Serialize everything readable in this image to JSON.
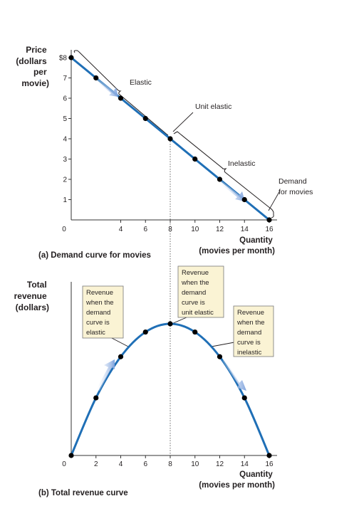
{
  "panel_a": {
    "y_label_lines": [
      "Price",
      "(dollars",
      "per",
      "movie)"
    ],
    "x_label_lines": [
      "Quantity",
      "(movies per month)"
    ],
    "caption": "(a) Demand curve for movies",
    "y_ticks": [
      "$8",
      "7",
      "6",
      "5",
      "4",
      "3",
      "2",
      "1"
    ],
    "x_ticks": [
      "0",
      "4",
      "6",
      "8",
      "10",
      "12",
      "14",
      "16"
    ],
    "annotations": {
      "elastic": "Elastic",
      "unit_elastic": "Unit elastic",
      "inelastic": "Inelastic",
      "demand_lines": [
        "Demand",
        "for movies"
      ]
    }
  },
  "panel_b": {
    "y_label_lines": [
      "Total",
      "revenue",
      "(dollars)"
    ],
    "x_label_lines": [
      "Quantity",
      "(movies per month)"
    ],
    "caption": "(b) Total revenue curve",
    "x_ticks": [
      "0",
      "2",
      "4",
      "6",
      "8",
      "10",
      "12",
      "14",
      "16"
    ],
    "boxes": {
      "elastic": [
        "Revenue",
        "when the",
        "demand",
        "curve is",
        "elastic"
      ],
      "unit": [
        "Revenue",
        "when the",
        "demand",
        "curve is",
        "unit elastic"
      ],
      "inelastic": [
        "Revenue",
        "when the",
        "demand",
        "curve is",
        "inelastic"
      ]
    }
  },
  "colors": {
    "curve": "#1f6fb6",
    "arrow": "#9fb8e3",
    "box_fill": "#faf3d4",
    "guide": "#444444"
  },
  "chart_data": [
    {
      "type": "line",
      "x": [
        0,
        2,
        4,
        6,
        8,
        10,
        12,
        14,
        16
      ],
      "y": [
        8,
        7,
        6,
        5,
        4,
        3,
        2,
        1,
        0
      ],
      "xlim": [
        0,
        16
      ],
      "ylim": [
        0,
        8
      ],
      "ylabel": "Price (dollars per movie)",
      "xlabel": "Quantity (movies per month)",
      "title": "(a) Demand curve for movies"
    },
    {
      "type": "line",
      "x": [
        0,
        2,
        4,
        6,
        8,
        10,
        12,
        14,
        16
      ],
      "y": [
        0,
        14,
        24,
        30,
        32,
        30,
        24,
        14,
        0
      ],
      "xlim": [
        0,
        16
      ],
      "ylabel": "Total revenue (dollars)",
      "xlabel": "Quantity (movies per month)",
      "title": "(b) Total revenue curve"
    }
  ]
}
